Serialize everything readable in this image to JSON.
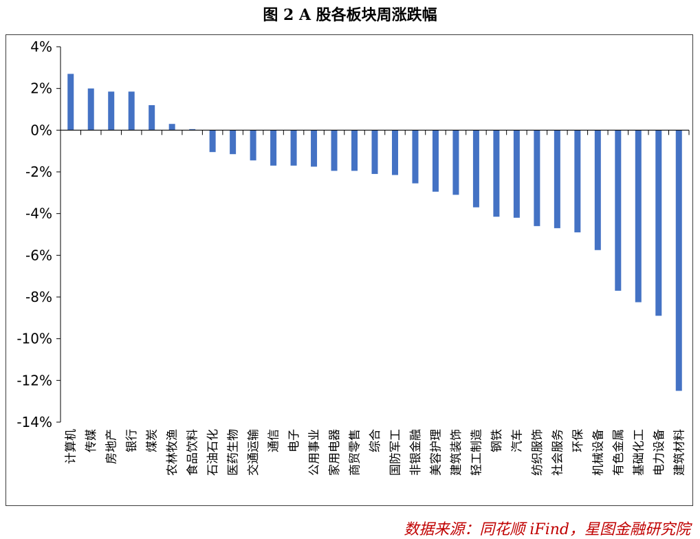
{
  "title": "图 2 A 股各板块周涨跌幅",
  "source": "数据来源：同花顺 iFind，星图金融研究院",
  "chart_data": {
    "type": "bar",
    "ylim": [
      -14,
      4
    ],
    "ytick_values": [
      4,
      2,
      0,
      -2,
      -4,
      -6,
      -8,
      -10,
      -12,
      -14
    ],
    "ytick_labels": [
      "4%",
      "2%",
      "0%",
      "-2%",
      "-4%",
      "-6%",
      "-8%",
      "-10%",
      "-12%",
      "-14%"
    ],
    "bar_color": "#4472c4",
    "categories": [
      "计算机",
      "传媒",
      "房地产",
      "银行",
      "煤炭",
      "农林牧渔",
      "食品饮料",
      "石油石化",
      "医药生物",
      "交通运输",
      "通信",
      "电子",
      "公用事业",
      "家用电器",
      "商贸零售",
      "综合",
      "国防军工",
      "非银金融",
      "美容护理",
      "建筑装饰",
      "轻工制造",
      "钢铁",
      "汽车",
      "纺织服饰",
      "社会服务",
      "环保",
      "机械设备",
      "有色金属",
      "基础化工",
      "电力设备",
      "建筑材料"
    ],
    "values": [
      2.7,
      2.0,
      1.85,
      1.85,
      1.2,
      0.3,
      0.05,
      -1.05,
      -1.15,
      -1.45,
      -1.7,
      -1.7,
      -1.75,
      -1.95,
      -1.95,
      -2.1,
      -2.15,
      -2.55,
      -2.95,
      -3.1,
      -3.7,
      -4.15,
      -4.2,
      -4.6,
      -4.7,
      -4.9,
      -5.75,
      -7.7,
      -8.25,
      -8.9,
      -12.5
    ]
  }
}
